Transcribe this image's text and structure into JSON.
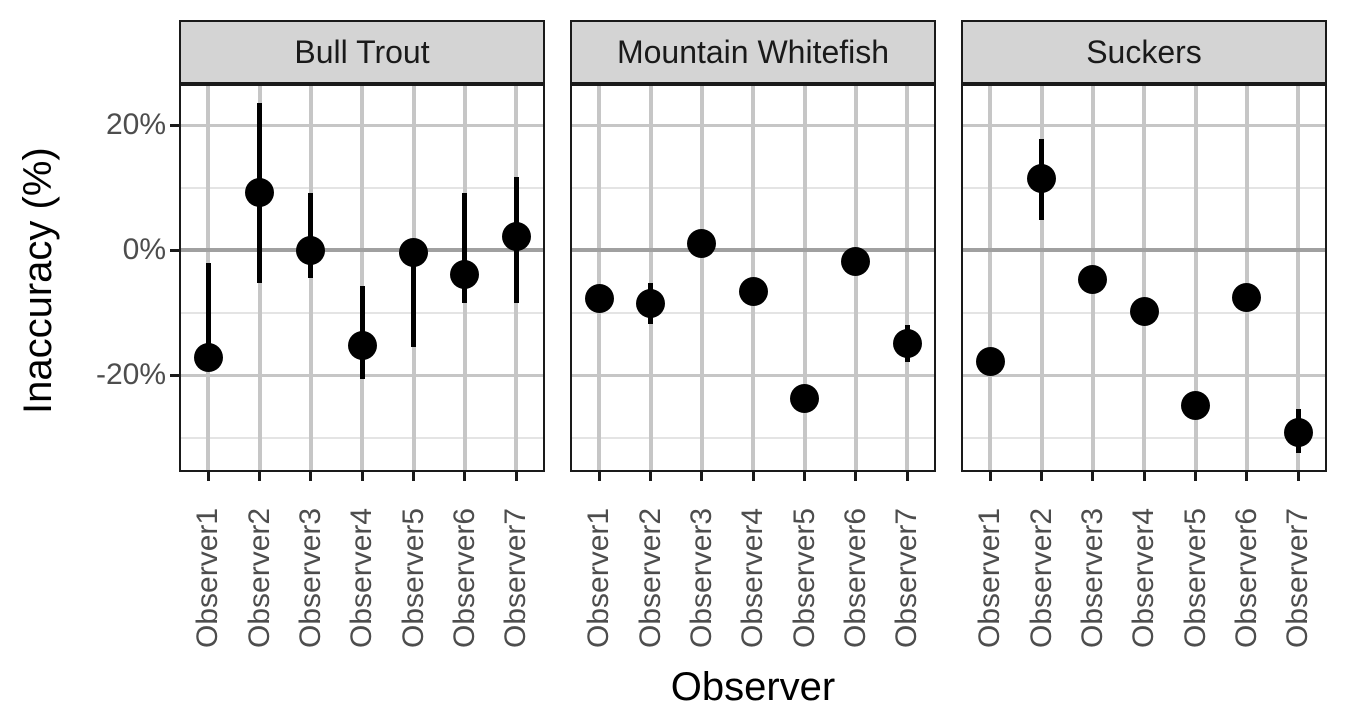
{
  "chart_data": {
    "type": "scatter",
    "subtype": "pointrange",
    "title": "",
    "xlabel": "Observer",
    "ylabel": "Inaccuracy (%)",
    "legend": null,
    "grid": true,
    "categories": [
      "Observer1",
      "Observer2",
      "Observer3",
      "Observer4",
      "Observer5",
      "Observer6",
      "Observer7"
    ],
    "y_axis": {
      "ticks": [
        {
          "label": "20%",
          "value": 20
        },
        {
          "label": "0%",
          "value": 0
        },
        {
          "label": "-20%",
          "value": -20
        }
      ],
      "minor_gridlines": [
        10,
        -10,
        -30
      ],
      "range": [
        -35.4,
        26.6
      ],
      "reference_line": 0
    },
    "facets": [
      {
        "label": "Bull Trout",
        "points": [
          {
            "x": "Observer1",
            "y": -17.2,
            "ymin": null,
            "ymax": -2.0
          },
          {
            "x": "Observer2",
            "y": 9.2,
            "ymin": -5.2,
            "ymax": 23.5
          },
          {
            "x": "Observer3",
            "y": 0.0,
            "ymin": -4.4,
            "ymax": 9.2
          },
          {
            "x": "Observer4",
            "y": -15.2,
            "ymin": -20.7,
            "ymax": -5.8
          },
          {
            "x": "Observer5",
            "y": -0.4,
            "ymin": -15.5,
            "ymax": null
          },
          {
            "x": "Observer6",
            "y": -3.9,
            "ymin": -8.5,
            "ymax": 9.1
          },
          {
            "x": "Observer7",
            "y": 2.1,
            "ymin": -8.5,
            "ymax": 11.7
          }
        ]
      },
      {
        "label": "Mountain Whitefish",
        "points": [
          {
            "x": "Observer1",
            "y": -7.7,
            "ymin": null,
            "ymax": null
          },
          {
            "x": "Observer2",
            "y": -8.5,
            "ymin": -11.9,
            "ymax": -5.3
          },
          {
            "x": "Observer3",
            "y": 1.1,
            "ymin": null,
            "ymax": null
          },
          {
            "x": "Observer4",
            "y": -6.7,
            "ymin": null,
            "ymax": null
          },
          {
            "x": "Observer5",
            "y": -23.7,
            "ymin": null,
            "ymax": null
          },
          {
            "x": "Observer6",
            "y": -1.9,
            "ymin": null,
            "ymax": null
          },
          {
            "x": "Observer7",
            "y": -14.9,
            "ymin": -17.9,
            "ymax": -12.0
          }
        ]
      },
      {
        "label": "Suckers",
        "points": [
          {
            "x": "Observer1",
            "y": -17.9,
            "ymin": null,
            "ymax": null
          },
          {
            "x": "Observer2",
            "y": 11.5,
            "ymin": 4.8,
            "ymax": 17.7
          },
          {
            "x": "Observer3",
            "y": -4.7,
            "ymin": null,
            "ymax": null
          },
          {
            "x": "Observer4",
            "y": -9.9,
            "ymin": null,
            "ymax": null
          },
          {
            "x": "Observer5",
            "y": -24.9,
            "ymin": null,
            "ymax": null
          },
          {
            "x": "Observer6",
            "y": -7.6,
            "ymin": null,
            "ymax": null
          },
          {
            "x": "Observer7",
            "y": -29.2,
            "ymin": -32.5,
            "ymax": -25.4
          }
        ]
      }
    ],
    "style": {
      "point_color": "#000000",
      "errorbar_color": "#000000",
      "gridline_major_color": "#c6c6c6",
      "gridline_minor_color": "#e4e4e4",
      "zero_line_color": "#a0a0a0",
      "strip_fill": "#d4d4d4",
      "panel_border_color": "#1a1a1a",
      "tick_label_color": "#4d4d4d",
      "axis_title_color": "#000000",
      "background": "#ffffff"
    }
  }
}
